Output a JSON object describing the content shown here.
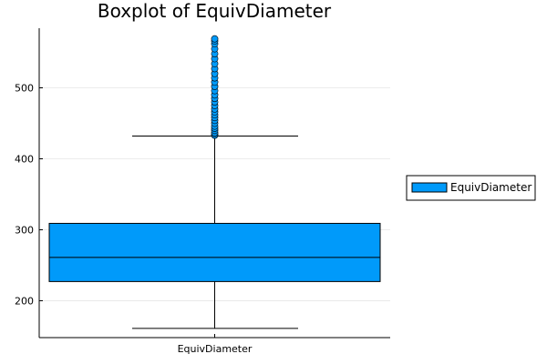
{
  "chart_data": {
    "type": "box",
    "title": "Boxplot of EquivDiameter",
    "categories": [
      "EquivDiameter"
    ],
    "xlabel": "",
    "ylabel": "",
    "ylim": [
      148,
      584
    ],
    "yticks": [
      200,
      300,
      400,
      500
    ],
    "grid": true,
    "legend_position": "right",
    "series": [
      {
        "name": "EquivDiameter",
        "color": "#009AFA",
        "whisker_low": 161,
        "q1": 227,
        "median": 261,
        "q3": 309,
        "whisker_high": 432,
        "outliers": [
          433,
          435,
          437,
          440,
          443,
          446,
          450,
          454,
          458,
          462,
          466,
          470,
          475,
          480,
          485,
          490,
          496,
          502,
          508,
          514,
          520,
          527,
          534,
          541,
          548,
          555,
          562,
          566,
          569
        ]
      }
    ]
  }
}
